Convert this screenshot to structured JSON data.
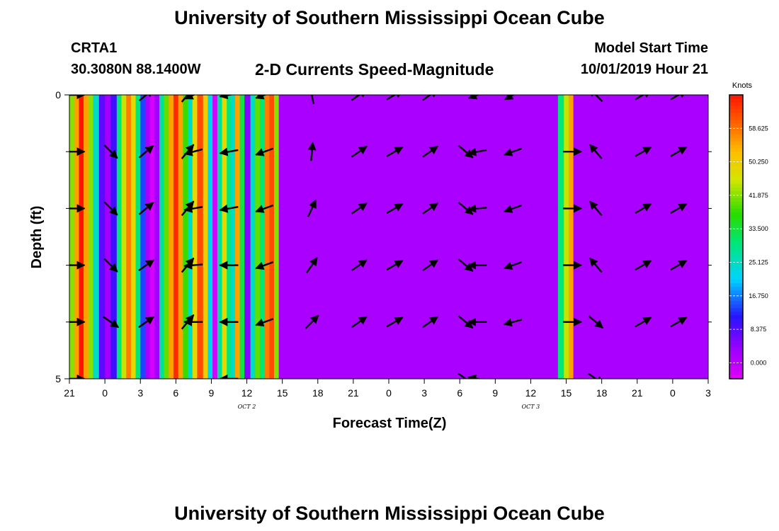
{
  "page": {
    "title_top": "University of Southern Mississippi Ocean Cube",
    "title_bottom": "University of Southern Mississippi Ocean Cube",
    "station_id": "CRTA1",
    "station_coords": "30.3080N 88.1400W",
    "subtitle": "2-D Currents Speed-Magnitude",
    "model_start_label": "Model Start Time",
    "model_start_value": "10/01/2019 Hour 21"
  },
  "colors": {
    "background_field": "#7a00ff",
    "arrow": "#000000"
  },
  "chart_data": {
    "type": "heatmap",
    "xlabel": "Forecast Time(Z)",
    "ylabel": "Depth (ft)",
    "x_units": "forecast hours since 10/01/2019 21Z",
    "xlim": [
      0,
      54
    ],
    "ylim": [
      5,
      0
    ],
    "x_tick_labels": [
      {
        "hour": 0,
        "label": "21"
      },
      {
        "hour": 3,
        "label": "0"
      },
      {
        "hour": 6,
        "label": "3"
      },
      {
        "hour": 9,
        "label": "6"
      },
      {
        "hour": 12,
        "label": "9"
      },
      {
        "hour": 15,
        "label": "12"
      },
      {
        "hour": 18,
        "label": "15"
      },
      {
        "hour": 21,
        "label": "18"
      },
      {
        "hour": 24,
        "label": "21"
      },
      {
        "hour": 27,
        "label": "0"
      },
      {
        "hour": 30,
        "label": "3"
      },
      {
        "hour": 33,
        "label": "6"
      },
      {
        "hour": 36,
        "label": "9"
      },
      {
        "hour": 39,
        "label": "12"
      },
      {
        "hour": 42,
        "label": "15"
      },
      {
        "hour": 45,
        "label": "18"
      },
      {
        "hour": 48,
        "label": "21"
      },
      {
        "hour": 51,
        "label": "0"
      },
      {
        "hour": 54,
        "label": "3"
      }
    ],
    "date_labels": [
      {
        "hour": 15,
        "label": "OCT 2"
      },
      {
        "hour": 39,
        "label": "OCT 3"
      }
    ],
    "y_tick_labels": [
      {
        "depth": 0,
        "label": "0"
      },
      {
        "depth": 5,
        "label": "5"
      }
    ],
    "y_minor_ticks": [
      1,
      2,
      3,
      4
    ],
    "colorbar": {
      "title": "Knots",
      "min": -4,
      "max": 67,
      "labels": [
        {
          "value": 0,
          "label": "0.000"
        },
        {
          "value": 8.375,
          "label": "8.375"
        },
        {
          "value": 16.75,
          "label": "16.750"
        },
        {
          "value": 25.125,
          "label": "25.125"
        },
        {
          "value": 33.5,
          "label": "33.500"
        },
        {
          "value": 41.875,
          "label": "41.875"
        },
        {
          "value": 50.25,
          "label": "50.250"
        },
        {
          "value": 58.625,
          "label": "58.625"
        }
      ]
    },
    "speed_columns": [
      {
        "start": 0.0,
        "end": 0.4,
        "speed": 42
      },
      {
        "start": 0.4,
        "end": 0.8,
        "speed": 55
      },
      {
        "start": 0.8,
        "end": 1.2,
        "speed": 67
      },
      {
        "start": 1.2,
        "end": 1.6,
        "speed": 55
      },
      {
        "start": 1.6,
        "end": 2.0,
        "speed": 42
      },
      {
        "start": 2.0,
        "end": 2.5,
        "speed": 25
      },
      {
        "start": 2.5,
        "end": 3.0,
        "speed": 8
      },
      {
        "start": 3.0,
        "end": 3.5,
        "speed": 3
      },
      {
        "start": 3.5,
        "end": 4.0,
        "speed": 10
      },
      {
        "start": 4.0,
        "end": 4.4,
        "speed": 30
      },
      {
        "start": 4.4,
        "end": 4.8,
        "speed": 45
      },
      {
        "start": 4.8,
        "end": 5.2,
        "speed": 58
      },
      {
        "start": 5.2,
        "end": 5.6,
        "speed": 48
      },
      {
        "start": 5.6,
        "end": 6.0,
        "speed": 30
      },
      {
        "start": 6.0,
        "end": 6.4,
        "speed": 14
      },
      {
        "start": 6.4,
        "end": 6.8,
        "speed": 2
      },
      {
        "start": 6.8,
        "end": 7.2,
        "speed": -3
      },
      {
        "start": 7.2,
        "end": 7.6,
        "speed": 3
      },
      {
        "start": 7.6,
        "end": 8.0,
        "speed": 28
      },
      {
        "start": 8.0,
        "end": 8.4,
        "speed": 40
      },
      {
        "start": 8.4,
        "end": 8.8,
        "speed": 55
      },
      {
        "start": 8.8,
        "end": 9.2,
        "speed": 65
      },
      {
        "start": 9.2,
        "end": 9.6,
        "speed": 55
      },
      {
        "start": 9.6,
        "end": 10.0,
        "speed": 38
      },
      {
        "start": 10.0,
        "end": 10.4,
        "speed": 25
      },
      {
        "start": 10.4,
        "end": 10.8,
        "speed": 48
      },
      {
        "start": 10.8,
        "end": 11.3,
        "speed": 62
      },
      {
        "start": 11.3,
        "end": 11.7,
        "speed": 50
      },
      {
        "start": 11.7,
        "end": 12.1,
        "speed": 22
      },
      {
        "start": 12.1,
        "end": 12.5,
        "speed": -3
      },
      {
        "start": 12.5,
        "end": 12.9,
        "speed": 28
      },
      {
        "start": 12.9,
        "end": 13.3,
        "speed": 48
      },
      {
        "start": 13.3,
        "end": 13.6,
        "speed": 30
      },
      {
        "start": 13.6,
        "end": 14.0,
        "speed": 25
      },
      {
        "start": 14.0,
        "end": 14.4,
        "speed": 55
      },
      {
        "start": 14.4,
        "end": 14.8,
        "speed": 33
      },
      {
        "start": 14.8,
        "end": 15.3,
        "speed": 5
      },
      {
        "start": 15.3,
        "end": 15.7,
        "speed": 25
      },
      {
        "start": 15.7,
        "end": 16.1,
        "speed": 40
      },
      {
        "start": 16.1,
        "end": 16.5,
        "speed": 30
      },
      {
        "start": 16.5,
        "end": 16.9,
        "speed": 58
      },
      {
        "start": 16.9,
        "end": 17.3,
        "speed": 62
      },
      {
        "start": 17.3,
        "end": 17.7,
        "speed": 42
      },
      {
        "start": 17.7,
        "end": 41.3,
        "speed": 2
      },
      {
        "start": 41.3,
        "end": 41.8,
        "speed": 30
      },
      {
        "start": 41.8,
        "end": 42.2,
        "speed": 45
      },
      {
        "start": 42.2,
        "end": 42.6,
        "speed": 55
      },
      {
        "start": 42.6,
        "end": 54.0,
        "speed": 2
      }
    ],
    "vector_rows_depth": [
      0,
      1,
      2,
      3,
      4,
      5
    ],
    "vectors": [
      {
        "hour": 0.5,
        "angles": [
          0,
          0,
          0,
          0,
          0,
          0
        ],
        "mag": 1.0
      },
      {
        "hour": 3.5,
        "angles": [
          null,
          -45,
          -45,
          -45,
          -35,
          null
        ],
        "mag": 1.0
      },
      {
        "hour": 6.5,
        "angles": [
          40,
          40,
          40,
          35,
          35,
          null
        ],
        "mag": 1.0
      },
      {
        "hour": 10.0,
        "angles": [
          50,
          50,
          50,
          50,
          50,
          null
        ],
        "mag": 1.0
      },
      {
        "hour": 10.5,
        "angles": [
          -155,
          -165,
          -170,
          -175,
          180,
          null
        ],
        "mag": 1.0
      },
      {
        "hour": 13.5,
        "angles": [
          -170,
          -170,
          -170,
          180,
          180,
          180
        ],
        "mag": 1.0
      },
      {
        "hour": 16.5,
        "angles": [
          -160,
          -160,
          -160,
          -160,
          -160,
          null
        ],
        "mag": 1.0
      },
      {
        "hour": 20.5,
        "angles": [
          100,
          85,
          65,
          55,
          45,
          null
        ],
        "mag": 1.0
      },
      {
        "hour": 24.5,
        "angles": [
          35,
          35,
          35,
          35,
          35,
          null
        ],
        "mag": 1.0
      },
      {
        "hour": 27.5,
        "angles": [
          30,
          30,
          30,
          30,
          30,
          null
        ],
        "mag": 1.0
      },
      {
        "hour": 30.5,
        "angles": [
          35,
          35,
          35,
          35,
          35,
          null
        ],
        "mag": 1.0
      },
      {
        "hour": 33.5,
        "angles": [
          null,
          -40,
          -40,
          -40,
          -40,
          -35
        ],
        "mag": 1.0
      },
      {
        "hour": 34.5,
        "angles": [
          -160,
          -170,
          -175,
          180,
          180,
          170
        ],
        "mag": 1.0
      },
      {
        "hour": 37.5,
        "angles": [
          -150,
          -160,
          -160,
          -160,
          -165,
          null
        ],
        "mag": 1.0
      },
      {
        "hour": 42.5,
        "angles": [
          null,
          0,
          0,
          0,
          0,
          null
        ],
        "mag": 1.0
      },
      {
        "hour": 44.5,
        "angles": [
          135,
          130,
          130,
          130,
          -40,
          -35
        ],
        "mag": 1.0
      },
      {
        "hour": 48.5,
        "angles": [
          30,
          30,
          30,
          30,
          30,
          null
        ],
        "mag": 1.0
      },
      {
        "hour": 51.5,
        "angles": [
          30,
          30,
          30,
          30,
          30,
          null
        ],
        "mag": 1.0
      }
    ]
  }
}
